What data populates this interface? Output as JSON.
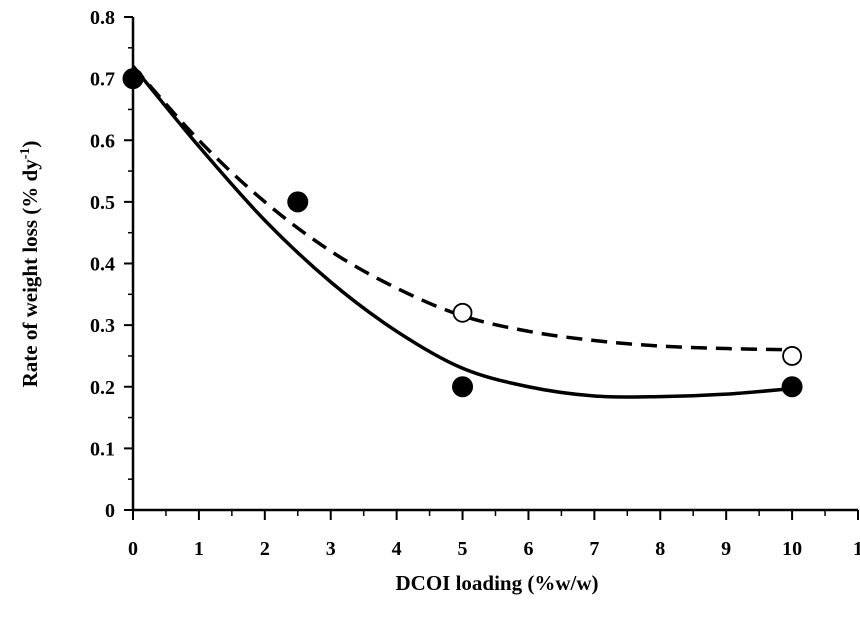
{
  "chart_data": {
    "type": "scatter",
    "xlabel": "DCOI loading (%w/w)",
    "ylabel": "Rate of weight loss (% dy",
    "ylabel_superscript": "-1",
    "ylabel_suffix": ")",
    "xlim": [
      0,
      11
    ],
    "ylim": [
      0,
      0.8
    ],
    "x_tick_labels": [
      "0",
      "1",
      "2",
      "3",
      "4",
      "5",
      "6",
      "7",
      "8",
      "9",
      "10",
      "1"
    ],
    "y_tick_labels": [
      "0",
      "0.1",
      "0.2",
      "0.3",
      "0.4",
      "0.5",
      "0.6",
      "0.7",
      "0.8"
    ],
    "grid": false,
    "series": [
      {
        "marker": "filled-circle",
        "points": [
          {
            "x": 0,
            "y": 0.7
          },
          {
            "x": 2.5,
            "y": 0.5
          },
          {
            "x": 5,
            "y": 0.2
          },
          {
            "x": 10,
            "y": 0.2
          }
        ],
        "trend": {
          "style": "solid",
          "curve": [
            [
              0,
              0.72
            ],
            [
              1,
              0.59
            ],
            [
              2,
              0.47
            ],
            [
              3,
              0.37
            ],
            [
              4,
              0.29
            ],
            [
              5,
              0.23
            ],
            [
              6,
              0.2
            ],
            [
              7,
              0.185
            ],
            [
              8,
              0.184
            ],
            [
              9,
              0.188
            ],
            [
              10,
              0.197
            ]
          ]
        }
      },
      {
        "marker": "open-circle",
        "points": [
          {
            "x": 0,
            "y": 0.7
          },
          {
            "x": 5,
            "y": 0.32
          },
          {
            "x": 10,
            "y": 0.25
          }
        ],
        "trend": {
          "style": "dashed",
          "curve": [
            [
              0,
              0.72
            ],
            [
              1,
              0.6
            ],
            [
              2,
              0.5
            ],
            [
              3,
              0.42
            ],
            [
              4,
              0.36
            ],
            [
              5,
              0.315
            ],
            [
              6,
              0.29
            ],
            [
              7,
              0.275
            ],
            [
              8,
              0.266
            ],
            [
              9,
              0.262
            ],
            [
              10,
              0.26
            ]
          ]
        }
      }
    ]
  }
}
